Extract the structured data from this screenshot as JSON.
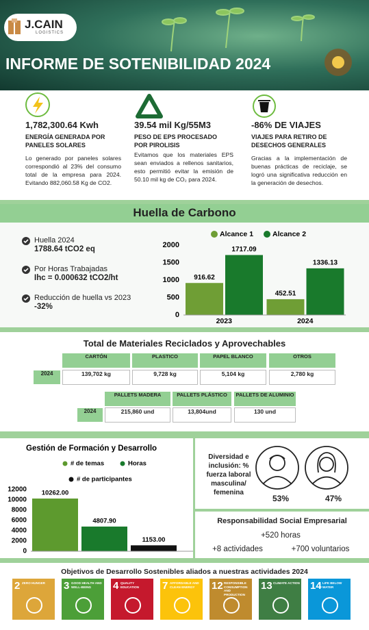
{
  "header": {
    "logo": "J.CAIN",
    "logo_sub": "LOGISTICS",
    "title": "INFORME DE SOTENIBILIDAD 2024"
  },
  "stats": [
    {
      "value": "1,782,300.64 Kwh",
      "label": "ENERGÍA GENERADA POR PANELES SOLARES",
      "text": "Lo generado por paneles solares correspondió al 23% del consumo total de la empresa para 2024. Evitando 882,060.58 Kg de CO2."
    },
    {
      "value": "39.54 mil Kg/55M3",
      "label": "PESO DE EPS PROCESADO POR PIROLISIS",
      "text": "Evitamos que los materiales EPS sean enviados a rellenos sanitarios, esto permitió evitar la emisión de 50.10 mil kg de CO₂ para 2024."
    },
    {
      "value": "-86% DE VIAJES",
      "label": "VIAJES PARA RETIRO DE DESECHOS GENERALES",
      "text": "Gracias a la implementación de buenas prácticas de reciclaje, se logró una significativa reducción en la generación de desechos."
    }
  ],
  "carbon": {
    "title": "Huella de Carbono",
    "items": [
      {
        "label": "Huella 2024",
        "value": "1788.64 tCO2 eq"
      },
      {
        "label": "Por Horas Trabajadas",
        "value": "Ihc = 0.000632 tCO2/ht"
      },
      {
        "label": "Reducción de huella vs 2023",
        "value": "-32%"
      }
    ]
  },
  "chart_data": [
    {
      "type": "bar",
      "categories": [
        "2023",
        "2024"
      ],
      "series": [
        {
          "name": "Alcance 1",
          "color": "#6f9e35",
          "values": [
            916.62,
            452.51
          ]
        },
        {
          "name": "Alcance 2",
          "color": "#197a2c",
          "values": [
            1717.09,
            1336.13
          ]
        }
      ],
      "ylim": [
        0,
        2000
      ],
      "yticks": [
        0,
        500,
        1000,
        1500,
        2000
      ],
      "grid": false,
      "legend": "top"
    },
    {
      "type": "bar",
      "title": "Gestión de Formación y Desarrollo",
      "categories": [
        null
      ],
      "series": [
        {
          "name": "# de temas",
          "color": "#5d9a2e",
          "values": [
            10262
          ],
          "value_labels": [
            "10262.00"
          ]
        },
        {
          "name": "Horas",
          "color": "#197a2c",
          "values": [
            4807.9
          ],
          "value_labels": [
            "4807.90"
          ]
        },
        {
          "name": "# de participantes",
          "color": "#111111",
          "values": [
            1153
          ],
          "value_labels": [
            "1153.00"
          ]
        }
      ],
      "ylim": [
        0,
        12000
      ],
      "yticks": [
        0,
        2000,
        4000,
        6000,
        8000,
        10000,
        12000
      ],
      "grid": false,
      "legend": "top"
    }
  ],
  "materials": {
    "title": "Total de Materiales Reciclados y Aprovechables",
    "rows": [
      {
        "year": "2024",
        "headers": [
          "CARTÓN",
          "PLASTICO",
          "PAPEL BLANCO",
          "OTROS"
        ],
        "values": [
          "139,702 kg",
          "9,728 kg",
          "5,104 kg",
          "2,780 kg"
        ]
      },
      {
        "year": "2024",
        "headers": [
          "PALLETS MADERA",
          "PALLETS PLÁSTICO",
          "PALLETS DE ALUMINIO"
        ],
        "values": [
          "215,860 und",
          "13,804und",
          "130 und"
        ]
      }
    ]
  },
  "diversity": {
    "title": "Diversidad e inclusión: % fuerza laboral masculina/ femenina",
    "male": "53%",
    "female": "47%"
  },
  "rse": {
    "title": "Responsabilidad Social Empresarial",
    "items": [
      "+520 horas",
      "+8 actividades",
      "+700 voluntarios"
    ]
  },
  "ods": {
    "title": "Objetivos de Desarrollo Sostenibles aliados a nuestras actividades 2024",
    "goals": [
      {
        "number": "2",
        "label": "ZERO HUNGER",
        "color": "#dda63a"
      },
      {
        "number": "3",
        "label": "GOOD HEALTH AND WELL-BEING",
        "color": "#4c9f38"
      },
      {
        "number": "4",
        "label": "QUALITY EDUCATION",
        "color": "#c5192d"
      },
      {
        "number": "7",
        "label": "AFFORDABLE AND CLEAN ENERGY",
        "color": "#fcc30b"
      },
      {
        "number": "12",
        "label": "RESPONSIBLE CONSUMPTION AND PRODUCTION",
        "color": "#bf8b2e"
      },
      {
        "number": "13",
        "label": "CLIMATE ACTION",
        "color": "#3f7e44"
      },
      {
        "number": "14",
        "label": "LIFE BELOW WATER",
        "color": "#0a97d9"
      }
    ]
  }
}
